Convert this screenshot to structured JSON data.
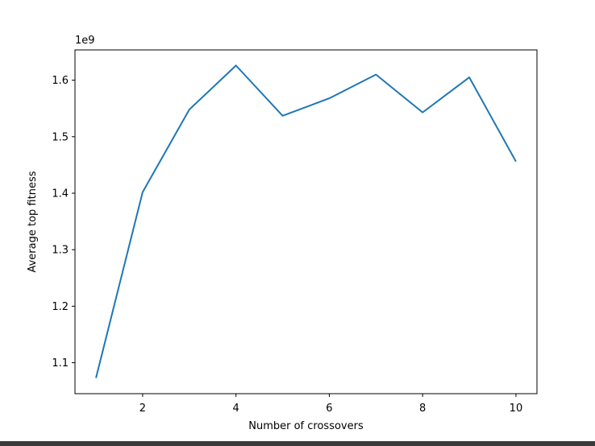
{
  "chart_data": {
    "type": "line",
    "title": "",
    "xlabel": "Number of crossovers",
    "ylabel": "Average top fitness",
    "y_offset_label": "1e9",
    "x": [
      1,
      2,
      3,
      4,
      5,
      6,
      7,
      8,
      9,
      10
    ],
    "series": [
      {
        "values": [
          1.073,
          1.402,
          1.548,
          1.626,
          1.537,
          1.568,
          1.61,
          1.543,
          1.605,
          1.456
        ],
        "color": "#1f77b4"
      }
    ],
    "x_ticks": [
      2,
      4,
      6,
      8,
      10
    ],
    "x_tick_labels": [
      "2",
      "4",
      "6",
      "8",
      "10"
    ],
    "y_ticks": [
      1.1,
      1.2,
      1.3,
      1.4,
      1.5,
      1.6
    ],
    "y_tick_labels": [
      "1.1",
      "1.2",
      "1.3",
      "1.4",
      "1.5",
      "1.6"
    ],
    "xlim": [
      0.55,
      10.45
    ],
    "ylim": [
      1.0452,
      1.6536
    ],
    "grid": false,
    "legend": "none"
  },
  "colors": {
    "line": "#1f77b4",
    "axes": "#000000",
    "background": "#ffffff",
    "bottom_bar": "#3a3a3a"
  }
}
